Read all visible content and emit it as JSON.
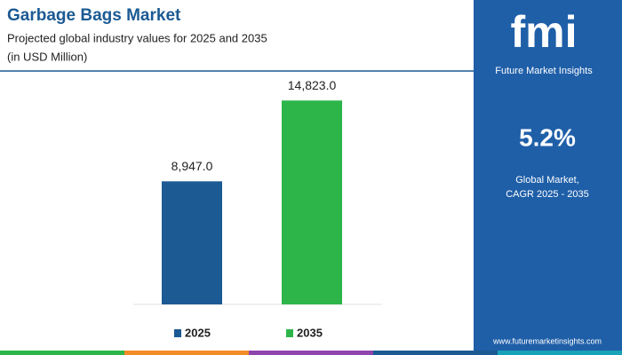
{
  "chart_data": {
    "type": "bar",
    "title": "Garbage Bags Market",
    "subtitle": "Projected global industry values for 2025 and 2035",
    "unit_note": "(in USD Million)",
    "categories": [
      "2025",
      "2035"
    ],
    "values": [
      8947,
      14823
    ],
    "value_labels": [
      "8,947.0",
      "14,823.0"
    ],
    "colors": [
      "#1b5a93",
      "#2db54a"
    ],
    "ylim": [
      0,
      16000
    ],
    "legend": "bottom"
  },
  "panel": {
    "logo": "fmi",
    "brand": "Future Market Insights",
    "cagr": "5.2%",
    "caption_line1": "Global Market,",
    "caption_line2": "CAGR 2025 - 2035",
    "website": "www.futuremarketinsights.com"
  }
}
